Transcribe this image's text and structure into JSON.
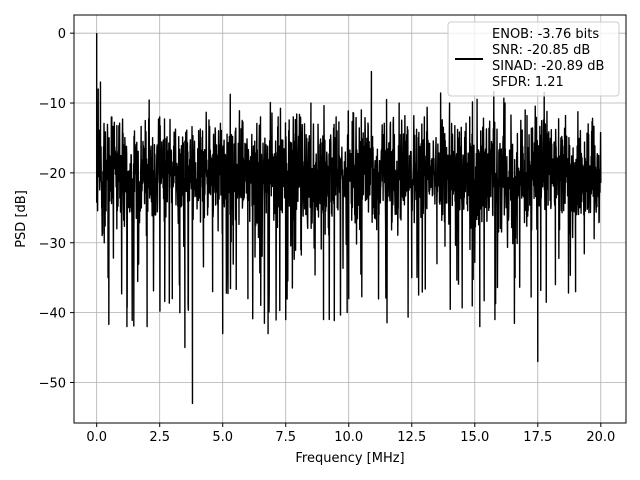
{
  "chart_data": {
    "type": "line",
    "xlabel": "Frequency [MHz]",
    "ylabel": "PSD [dB]",
    "xlim": [
      -0.9,
      21.0
    ],
    "ylim": [
      -55.8,
      2.6
    ],
    "xticks": [
      0.0,
      2.5,
      5.0,
      7.5,
      10.0,
      12.5,
      15.0,
      17.5,
      20.0
    ],
    "xtick_labels": [
      "0.0",
      "2.5",
      "5.0",
      "7.5",
      "10.0",
      "12.5",
      "15.0",
      "17.5",
      "20.0"
    ],
    "yticks": [
      0,
      -10,
      -20,
      -30,
      -40,
      -50
    ],
    "ytick_labels": [
      "0",
      "−10",
      "−20",
      "−30",
      "−40",
      "−50"
    ],
    "grid": true,
    "legend_position": "top-right",
    "line_color": "#000000",
    "series": [
      {
        "name": "ENOB: -3.76 bits\nSNR: -20.85 dB\nSINAD: -20.89 dB\nSFDR: 1.21",
        "approx_range_db": [
          -53,
          0
        ],
        "x": [
          0.0,
          0.03,
          0.06,
          0.1,
          0.15,
          0.2,
          0.3,
          0.45,
          0.6,
          0.8,
          1.2,
          1.5,
          2.0,
          2.5,
          3.0,
          3.3,
          3.5,
          3.8,
          4.2,
          4.6,
          5.0,
          5.5,
          6.0,
          6.5,
          6.8,
          7.2,
          7.5,
          7.8,
          8.1,
          8.5,
          9.0,
          9.5,
          10.0,
          10.5,
          10.9,
          11.5,
          12.0,
          12.5,
          13.0,
          13.5,
          14.0,
          14.5,
          14.8,
          15.2,
          15.8,
          16.2,
          16.6,
          17.0,
          17.5,
          17.8,
          18.2,
          18.6,
          19.0,
          19.5,
          20.0
        ],
        "y": [
          0.0,
          -22.0,
          -8.0,
          -15.0,
          -7.0,
          -25.0,
          -30.0,
          -35.0,
          -12.0,
          -28.0,
          -42.0,
          -14.0,
          -42.0,
          -12.0,
          -38.0,
          -40.0,
          -45.0,
          -53.0,
          -14.0,
          -37.0,
          -43.0,
          -14.0,
          -38.0,
          -12.0,
          -43.0,
          -12.0,
          -41.0,
          -12.0,
          -31.0,
          -10.0,
          -41.0,
          -12.0,
          -38.0,
          -11.0,
          -5.5,
          -35.0,
          -10.0,
          -35.0,
          -12.0,
          -33.0,
          -10.0,
          -37.0,
          -12.0,
          -42.0,
          -41.0,
          -10.0,
          -35.0,
          -11.0,
          -47.0,
          -13.0,
          -36.0,
          -12.0,
          -37.0,
          -13.0,
          -20.0
        ]
      }
    ]
  }
}
